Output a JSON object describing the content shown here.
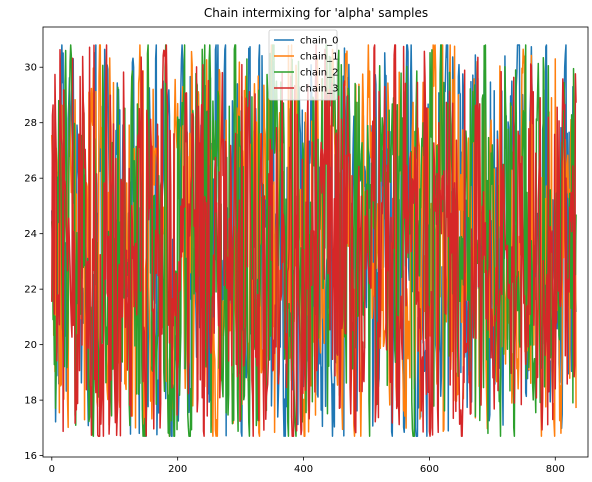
{
  "chart_data": {
    "type": "line",
    "title": "Chain intermixing for 'alpha' samples",
    "xlabel": "",
    "ylabel": "",
    "xlim": [
      -14,
      852
    ],
    "ylim": [
      15.95,
      31.45
    ],
    "xticks": [
      0,
      200,
      400,
      600,
      800
    ],
    "yticks": [
      16,
      18,
      20,
      22,
      24,
      26,
      28,
      30
    ],
    "legend_position": "top-center",
    "n_samples": 834,
    "series": [
      {
        "name": "chain_0",
        "color": "#1f77b4"
      },
      {
        "name": "chain_1",
        "color": "#ff7f0e"
      },
      {
        "name": "chain_2",
        "color": "#2ca02c"
      },
      {
        "name": "chain_3",
        "color": "#d62728"
      }
    ],
    "value_range": [
      16.7,
      30.8
    ]
  }
}
